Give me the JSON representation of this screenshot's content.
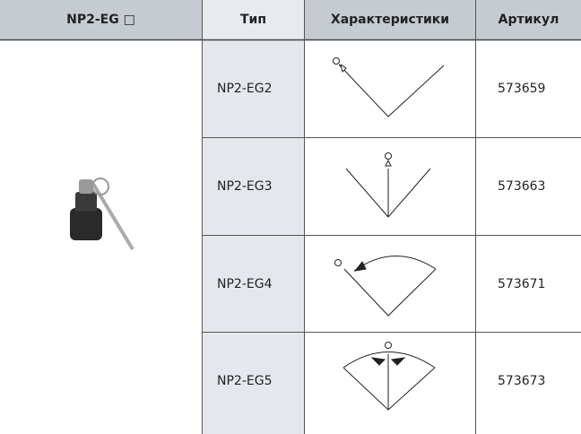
{
  "table": {
    "header": [
      "NP2-EG □",
      "Тип",
      "Характеристики",
      "Артикул"
    ],
    "rows": [
      [
        "NP2-EG2",
        "573659"
      ],
      [
        "NP2-EG3",
        "573663"
      ],
      [
        "NP2-EG4",
        "573671"
      ],
      [
        "NP2-EG5",
        "573673"
      ]
    ]
  }
}
